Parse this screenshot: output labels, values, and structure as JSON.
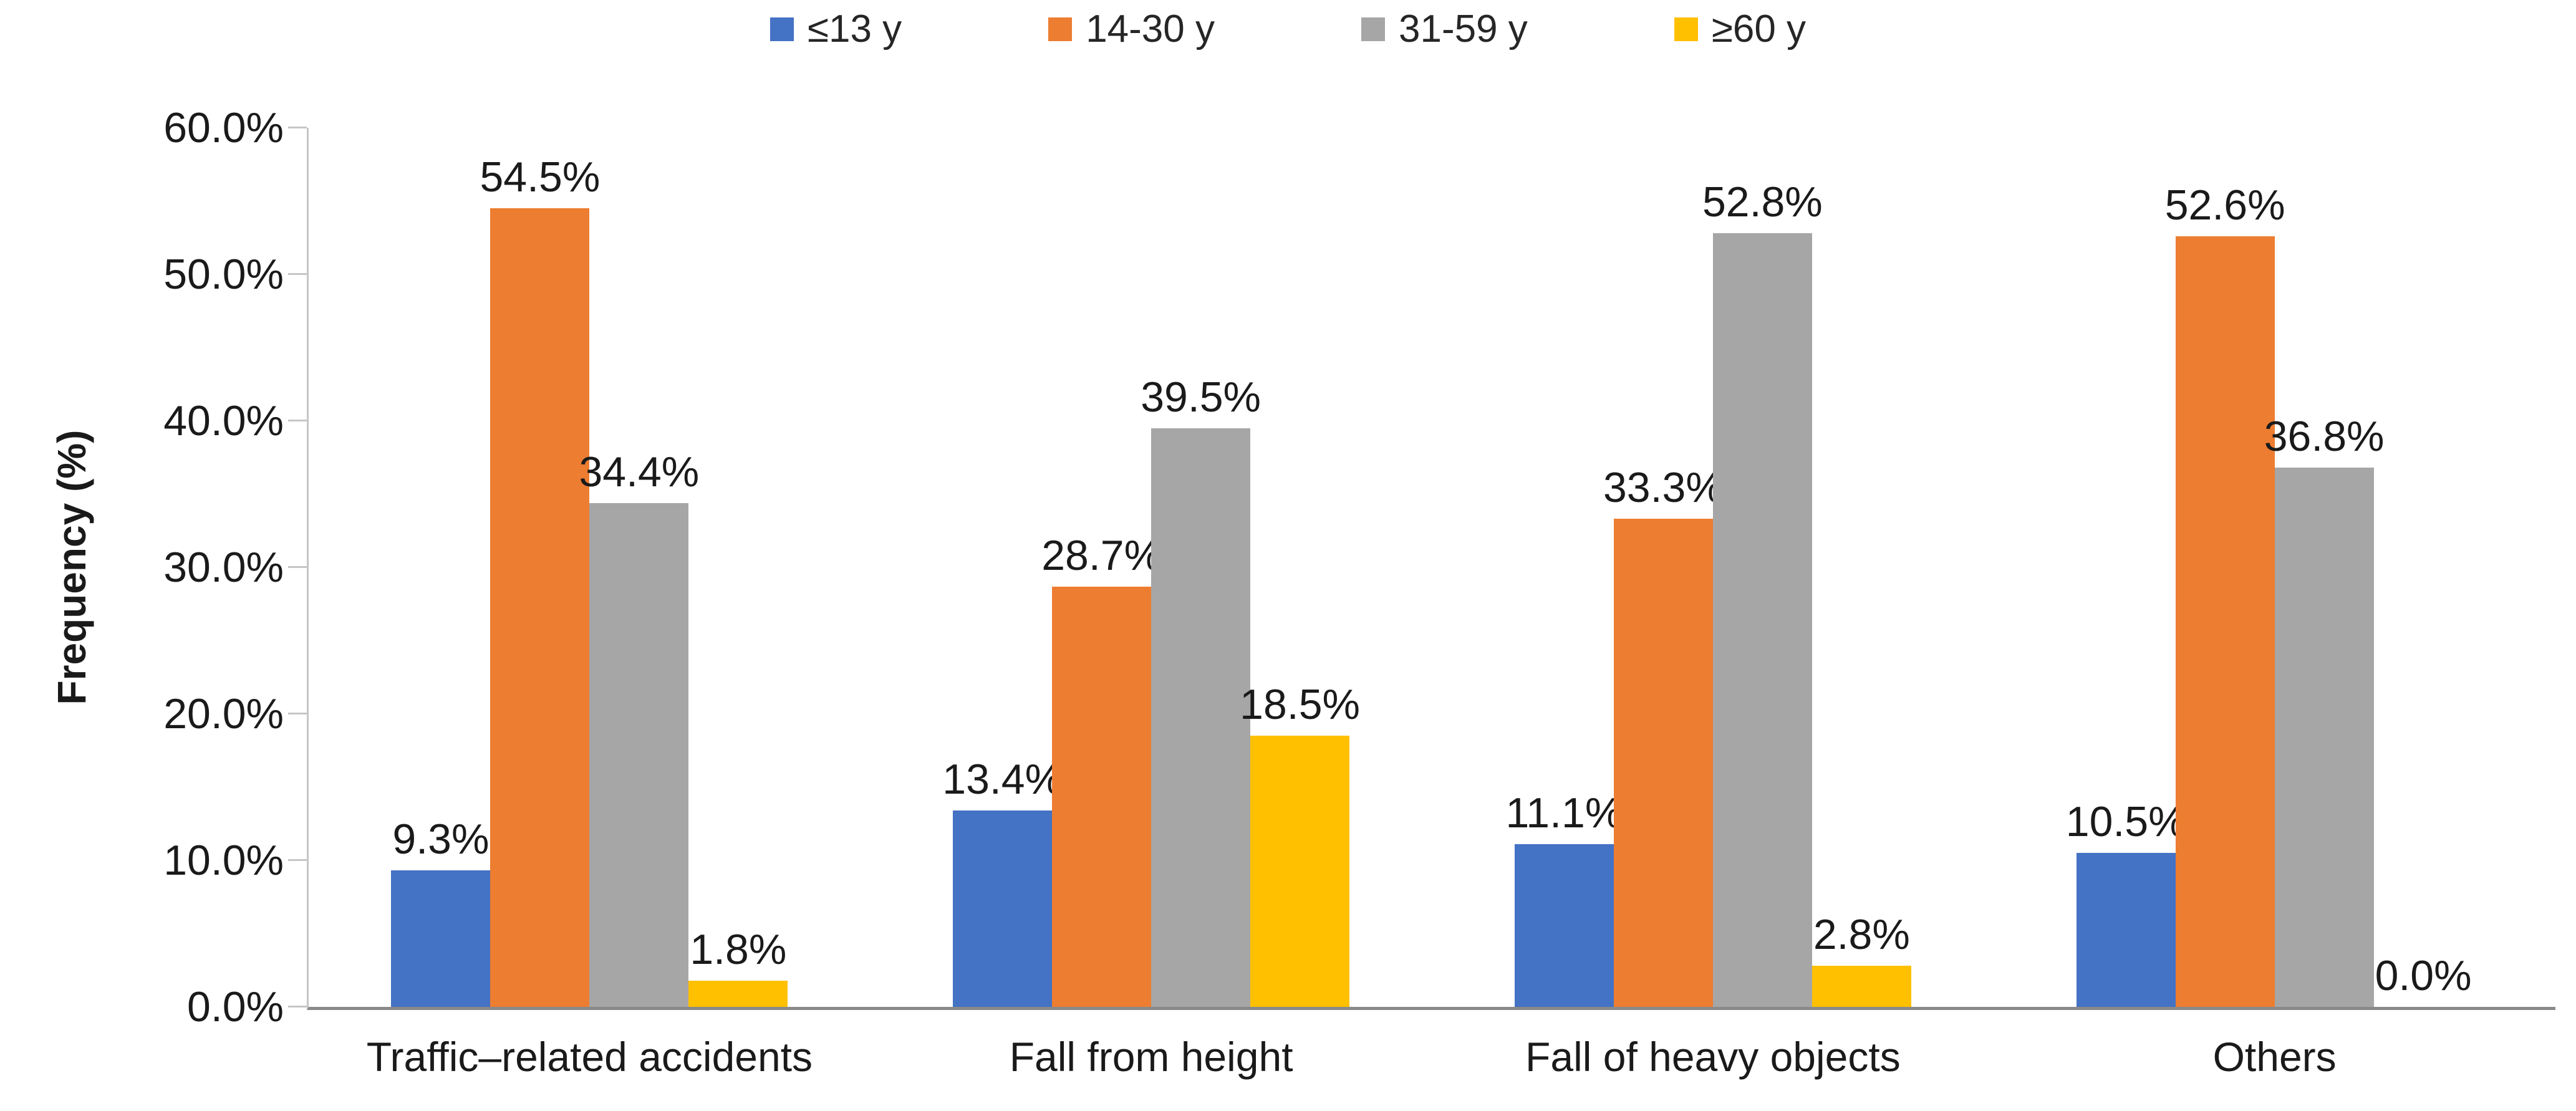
{
  "y_axis": {
    "title": "Frequency (%)",
    "tick_labels": [
      "0.0%",
      "10.0%",
      "20.0%",
      "30.0%",
      "40.0%",
      "50.0%",
      "60.0%"
    ]
  },
  "chart_data": {
    "type": "bar",
    "title": "",
    "xlabel": "",
    "ylabel": "Frequency (%)",
    "ylim": [
      0,
      60
    ],
    "ytick_step": 10,
    "grid": false,
    "legend_position": "top-center",
    "data_label_format": "one-decimal-percent",
    "categories": [
      "Traffic–related accidents",
      "Fall from height",
      "Fall of heavy objects",
      "Others"
    ],
    "series": [
      {
        "name": "≤13 y",
        "color": "#4472C4",
        "values": [
          9.3,
          13.4,
          11.1,
          10.5
        ]
      },
      {
        "name": "14-30 y",
        "color": "#ED7D31",
        "values": [
          54.5,
          28.7,
          33.3,
          52.6
        ]
      },
      {
        "name": "31-59 y",
        "color": "#A6A6A6",
        "values": [
          34.4,
          39.5,
          52.8,
          36.8
        ]
      },
      {
        "name": "≥60 y",
        "color": "#FFC000",
        "values": [
          1.8,
          18.5,
          2.8,
          0.0
        ]
      }
    ]
  },
  "colors": {
    "y_axis_line": "#c6c6c6",
    "x_axis_line": "#898989",
    "text": "#1a1a1a",
    "background": "#ffffff"
  }
}
